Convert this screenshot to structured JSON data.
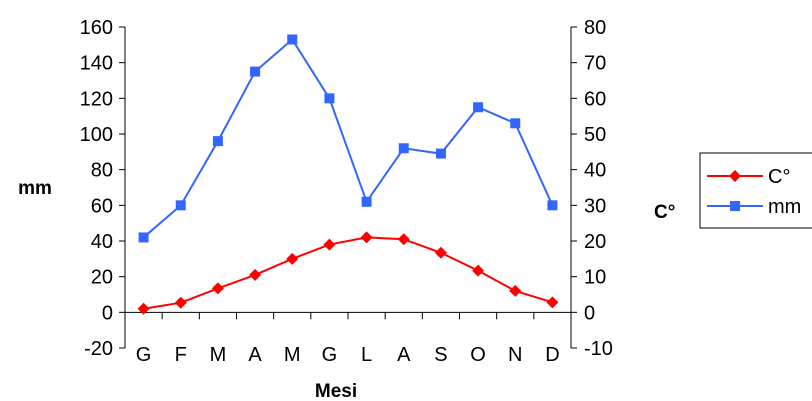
{
  "chart_data": {
    "type": "line",
    "categories": [
      "G",
      "F",
      "M",
      "A",
      "M",
      "G",
      "L",
      "A",
      "S",
      "O",
      "N",
      "D"
    ],
    "xlabel": "Mesi",
    "ylabel_left": "mm",
    "ylabel_right": "C°",
    "ylim_left": [
      -20,
      160
    ],
    "ylim_right": [
      -10,
      80
    ],
    "yticks_left": [
      "-20",
      "0",
      "20",
      "40",
      "60",
      "80",
      "100",
      "120",
      "140",
      "160"
    ],
    "yticks_right": [
      "-10",
      "0",
      "10",
      "20",
      "30",
      "40",
      "50",
      "60",
      "70",
      "80"
    ],
    "grid": false,
    "legend_position": "right",
    "series": [
      {
        "name": "C°",
        "axis": "right",
        "color": "#ff0000",
        "marker": "diamond",
        "values": [
          1,
          2.7,
          6.7,
          10.5,
          15,
          19,
          21,
          20.5,
          16.7,
          11.7,
          6,
          2.8
        ]
      },
      {
        "name": "mm",
        "axis": "left",
        "color": "#3366ff",
        "marker": "square",
        "values": [
          42,
          60,
          96,
          135,
          153,
          120,
          62,
          92,
          89,
          115,
          106,
          60
        ]
      }
    ]
  }
}
